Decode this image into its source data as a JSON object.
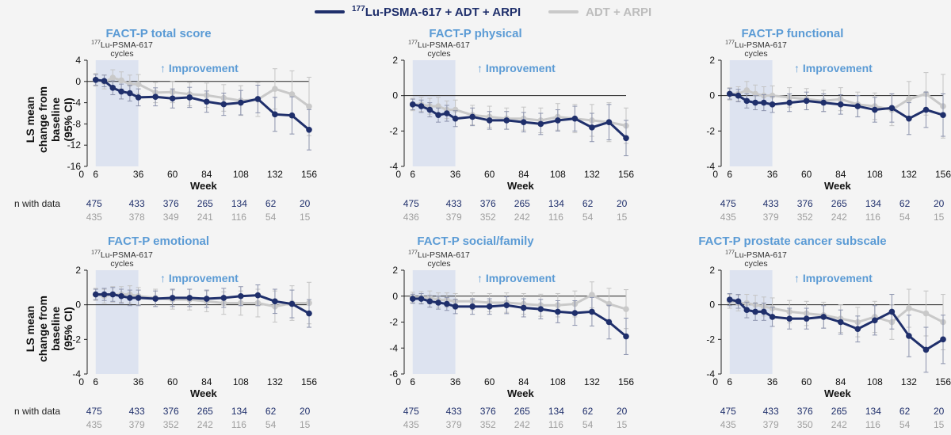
{
  "legend": {
    "items": [
      {
        "sup": "177",
        "text": "Lu-PSMA-617 + ADT + ARPI",
        "color": "#1f2f6b"
      },
      {
        "sup": "",
        "text": "ADT + ARPI",
        "color": "#c9c9c9"
      }
    ]
  },
  "common": {
    "cycles_sup": "177",
    "cycles_line1": "Lu-PSMA-617",
    "cycles_line2": "cycles",
    "improvement": "Improvement",
    "improvement_color": "#5b9bd5",
    "ylabel_line1": "LS mean",
    "ylabel_line2": "change from baseline",
    "ylabel_line3": "(95% CI)",
    "xlabel": "Week",
    "n_label": "n with data",
    "n_colors": [
      "#1f2f6b",
      "#9e9e9e"
    ],
    "title_color": "#5b9bd5"
  },
  "chart_data": [
    {
      "type": "line",
      "title": "FACT-P total score",
      "xlabel": "Week",
      "ylabel": "LS mean change from baseline (95% CI)",
      "xlim": [
        0,
        156
      ],
      "ylim": [
        -16,
        4
      ],
      "yticks": [
        4,
        0,
        -4,
        -8,
        -12,
        -16
      ],
      "xticks": [
        0,
        6,
        36,
        60,
        84,
        108,
        132,
        156
      ],
      "shaded_region": [
        6,
        36
      ],
      "x": [
        6,
        12,
        18,
        24,
        30,
        36,
        48,
        60,
        72,
        84,
        96,
        108,
        120,
        132,
        144,
        156
      ],
      "series": [
        {
          "name": "177Lu-PSMA-617 + ADT + ARPI",
          "values": [
            0.3,
            0.1,
            -1.2,
            -1.9,
            -2.2,
            -3.0,
            -2.9,
            -3.2,
            -3.0,
            -3.8,
            -4.3,
            -4.0,
            -3.3,
            -6.2,
            -6.4,
            -9.1
          ],
          "ci": [
            1.0,
            1.1,
            1.3,
            1.4,
            1.5,
            1.6,
            1.7,
            1.8,
            1.9,
            2.0,
            2.1,
            2.3,
            2.6,
            3.2,
            3.5,
            3.8
          ]
        },
        {
          "name": "ADT + ARPI",
          "values": [
            0.3,
            -0.1,
            0.7,
            0.2,
            -0.5,
            -0.5,
            -2.1,
            -2.0,
            -2.4,
            -2.6,
            -3.1,
            -3.6,
            -3.4,
            -1.4,
            -2.4,
            -4.7
          ],
          "ci": [
            1.2,
            1.3,
            1.5,
            1.6,
            1.7,
            1.8,
            1.9,
            2.0,
            2.2,
            2.3,
            2.5,
            2.8,
            3.2,
            3.8,
            4.4,
            5.5
          ]
        }
      ],
      "n_with_data": {
        "ticks": [
          6,
          36,
          60,
          84,
          108,
          132,
          156
        ],
        "series1": [
          "475",
          "433",
          "376",
          "265",
          "134",
          "62",
          "20"
        ],
        "series2": [
          "435",
          "378",
          "349",
          "241",
          "116",
          "54",
          "15"
        ]
      }
    },
    {
      "type": "line",
      "title": "FACT-P physical",
      "xlabel": "Week",
      "ylabel": "",
      "xlim": [
        0,
        156
      ],
      "ylim": [
        -4,
        2
      ],
      "yticks": [
        2,
        0,
        -2,
        -4
      ],
      "xticks": [
        0,
        6,
        36,
        60,
        84,
        108,
        132,
        156
      ],
      "shaded_region": [
        6,
        36
      ],
      "x": [
        6,
        12,
        18,
        24,
        30,
        36,
        48,
        60,
        72,
        84,
        96,
        108,
        120,
        132,
        144,
        156
      ],
      "series": [
        {
          "name": "177Lu-PSMA-617 + ADT + ARPI",
          "values": [
            -0.5,
            -0.6,
            -0.8,
            -1.1,
            -1.0,
            -1.3,
            -1.2,
            -1.4,
            -1.4,
            -1.5,
            -1.6,
            -1.4,
            -1.3,
            -1.8,
            -1.5,
            -2.4
          ],
          "ci": [
            0.3,
            0.35,
            0.4,
            0.4,
            0.45,
            0.45,
            0.5,
            0.5,
            0.5,
            0.55,
            0.6,
            0.6,
            0.7,
            0.8,
            1.0,
            1.0
          ]
        },
        {
          "name": "ADT + ARPI",
          "values": [
            -0.5,
            -0.5,
            -0.6,
            -0.6,
            -0.8,
            -0.8,
            -1.1,
            -1.2,
            -1.3,
            -1.3,
            -1.4,
            -1.2,
            -1.3,
            -1.4,
            -1.5,
            -1.7
          ],
          "ci": [
            0.35,
            0.4,
            0.45,
            0.5,
            0.5,
            0.55,
            0.55,
            0.6,
            0.6,
            0.65,
            0.7,
            0.75,
            0.8,
            0.9,
            1.1,
            1.0
          ]
        }
      ],
      "n_with_data": {
        "ticks": [
          6,
          36,
          60,
          84,
          108,
          132,
          156
        ],
        "series1": [
          "475",
          "433",
          "376",
          "265",
          "134",
          "62",
          "20"
        ],
        "series2": [
          "436",
          "379",
          "352",
          "242",
          "116",
          "54",
          "15"
        ]
      }
    },
    {
      "type": "line",
      "title": "FACT-P functional",
      "xlabel": "Week",
      "ylabel": "",
      "xlim": [
        0,
        156
      ],
      "ylim": [
        -4,
        2
      ],
      "yticks": [
        2,
        0,
        -2,
        -4
      ],
      "xticks": [
        0,
        6,
        36,
        60,
        84,
        108,
        132,
        156
      ],
      "shaded_region": [
        6,
        36
      ],
      "x": [
        6,
        12,
        18,
        24,
        30,
        36,
        48,
        60,
        72,
        84,
        96,
        108,
        120,
        132,
        144,
        156
      ],
      "series": [
        {
          "name": "177Lu-PSMA-617 + ADT + ARPI",
          "values": [
            0.1,
            0.0,
            -0.3,
            -0.4,
            -0.4,
            -0.5,
            -0.4,
            -0.3,
            -0.4,
            -0.5,
            -0.6,
            -0.8,
            -0.7,
            -1.3,
            -0.8,
            -1.1
          ],
          "ci": [
            0.3,
            0.35,
            0.4,
            0.4,
            0.45,
            0.45,
            0.5,
            0.5,
            0.5,
            0.55,
            0.6,
            0.7,
            0.8,
            0.9,
            1.0,
            1.2
          ]
        },
        {
          "name": "ADT + ARPI",
          "values": [
            0.1,
            0.1,
            0.3,
            0.1,
            0.0,
            0.0,
            -0.1,
            -0.2,
            -0.3,
            -0.2,
            -0.5,
            -0.6,
            -0.8,
            -0.2,
            0.1,
            -0.6
          ],
          "ci": [
            0.35,
            0.4,
            0.5,
            0.5,
            0.5,
            0.55,
            0.55,
            0.6,
            0.6,
            0.65,
            0.7,
            0.75,
            0.9,
            1.0,
            1.2,
            1.8
          ]
        }
      ],
      "n_with_data": {
        "ticks": [
          6,
          36,
          60,
          84,
          108,
          132,
          156
        ],
        "series1": [
          "475",
          "433",
          "376",
          "265",
          "134",
          "62",
          "20"
        ],
        "series2": [
          "435",
          "379",
          "352",
          "242",
          "116",
          "54",
          "15"
        ]
      }
    },
    {
      "type": "line",
      "title": "FACT-P emotional",
      "xlabel": "Week",
      "ylabel": "LS mean change from baseline (95% CI)",
      "xlim": [
        0,
        156
      ],
      "ylim": [
        -4,
        2
      ],
      "yticks": [
        2,
        0,
        -2,
        -4
      ],
      "xticks": [
        0,
        6,
        36,
        60,
        84,
        108,
        132,
        156
      ],
      "shaded_region": [
        6,
        36
      ],
      "x": [
        6,
        12,
        18,
        24,
        30,
        36,
        48,
        60,
        72,
        84,
        96,
        108,
        120,
        132,
        144,
        156
      ],
      "series": [
        {
          "name": "177Lu-PSMA-617 + ADT + ARPI",
          "values": [
            0.6,
            0.6,
            0.6,
            0.5,
            0.4,
            0.4,
            0.35,
            0.4,
            0.4,
            0.35,
            0.4,
            0.5,
            0.55,
            0.2,
            0.05,
            -0.5
          ],
          "ci": [
            0.3,
            0.35,
            0.4,
            0.4,
            0.45,
            0.45,
            0.45,
            0.5,
            0.5,
            0.5,
            0.55,
            0.55,
            0.6,
            0.7,
            0.8,
            0.8
          ]
        },
        {
          "name": "ADT + ARPI",
          "values": [
            0.6,
            0.5,
            0.6,
            0.6,
            0.6,
            0.5,
            0.4,
            0.3,
            0.3,
            0.2,
            0.1,
            0.1,
            0.1,
            -0.1,
            0.1,
            0.1
          ],
          "ci": [
            0.35,
            0.4,
            0.45,
            0.45,
            0.5,
            0.5,
            0.5,
            0.55,
            0.6,
            0.6,
            0.65,
            0.7,
            0.8,
            0.9,
            1.0,
            1.2
          ]
        }
      ],
      "n_with_data": {
        "ticks": [
          6,
          36,
          60,
          84,
          108,
          132,
          156
        ],
        "series1": [
          "475",
          "433",
          "376",
          "265",
          "134",
          "62",
          "20"
        ],
        "series2": [
          "435",
          "379",
          "352",
          "242",
          "116",
          "54",
          "15"
        ]
      }
    },
    {
      "type": "line",
      "title": "FACT-P social/family",
      "xlabel": "Week",
      "ylabel": "",
      "xlim": [
        0,
        156
      ],
      "ylim": [
        -6,
        2
      ],
      "yticks": [
        2,
        0,
        -2,
        -4,
        -6
      ],
      "xticks": [
        0,
        6,
        36,
        60,
        84,
        108,
        132,
        156
      ],
      "shaded_region": [
        6,
        36
      ],
      "x": [
        6,
        12,
        18,
        24,
        30,
        36,
        48,
        60,
        72,
        84,
        96,
        108,
        120,
        132,
        144,
        156
      ],
      "series": [
        {
          "name": "177Lu-PSMA-617 + ADT + ARPI",
          "values": [
            -0.2,
            -0.2,
            -0.4,
            -0.5,
            -0.6,
            -0.8,
            -0.8,
            -0.8,
            -0.7,
            -0.9,
            -1.0,
            -1.2,
            -1.3,
            -1.2,
            -2.0,
            -3.1
          ],
          "ci": [
            0.35,
            0.4,
            0.45,
            0.5,
            0.5,
            0.55,
            0.6,
            0.6,
            0.65,
            0.7,
            0.75,
            0.85,
            0.95,
            1.1,
            1.3,
            1.4
          ]
        },
        {
          "name": "ADT + ARPI",
          "values": [
            -0.1,
            -0.1,
            -0.1,
            -0.3,
            -0.3,
            -0.4,
            -0.4,
            -0.5,
            -0.5,
            -0.6,
            -0.7,
            -0.7,
            -0.6,
            0.1,
            -0.6,
            -1.0
          ],
          "ci": [
            0.4,
            0.45,
            0.5,
            0.55,
            0.55,
            0.6,
            0.65,
            0.7,
            0.75,
            0.8,
            0.85,
            0.9,
            1.0,
            1.0,
            1.2,
            1.5
          ]
        }
      ],
      "n_with_data": {
        "ticks": [
          6,
          36,
          60,
          84,
          108,
          132,
          156
        ],
        "series1": [
          "475",
          "433",
          "376",
          "265",
          "134",
          "62",
          "20"
        ],
        "series2": [
          "435",
          "379",
          "352",
          "242",
          "116",
          "54",
          "15"
        ]
      }
    },
    {
      "type": "line",
      "title": "FACT-P prostate cancer subscale",
      "xlabel": "Week",
      "ylabel": "",
      "xlim": [
        0,
        156
      ],
      "ylim": [
        -4,
        2
      ],
      "yticks": [
        2,
        0,
        -2,
        -4
      ],
      "xticks": [
        0,
        6,
        36,
        60,
        84,
        108,
        132,
        156
      ],
      "shaded_region": [
        6,
        36
      ],
      "x": [
        6,
        12,
        18,
        24,
        30,
        36,
        48,
        60,
        72,
        84,
        96,
        108,
        120,
        132,
        144,
        156
      ],
      "series": [
        {
          "name": "177Lu-PSMA-617 + ADT + ARPI",
          "values": [
            0.3,
            0.2,
            -0.3,
            -0.4,
            -0.4,
            -0.7,
            -0.8,
            -0.8,
            -0.7,
            -1.0,
            -1.4,
            -0.9,
            -0.4,
            -1.8,
            -2.6,
            -2.0
          ],
          "ci": [
            0.35,
            0.4,
            0.45,
            0.5,
            0.5,
            0.55,
            0.6,
            0.6,
            0.65,
            0.7,
            0.75,
            0.85,
            1.0,
            1.2,
            1.3,
            1.4
          ]
        },
        {
          "name": "ADT + ARPI",
          "values": [
            0.2,
            0.1,
            0.1,
            0.0,
            -0.1,
            -0.2,
            -0.4,
            -0.5,
            -0.6,
            -0.8,
            -1.0,
            -0.7,
            -1.0,
            -0.2,
            -0.5,
            -1.0
          ],
          "ci": [
            0.4,
            0.45,
            0.5,
            0.55,
            0.55,
            0.6,
            0.65,
            0.7,
            0.75,
            0.8,
            0.85,
            0.9,
            1.0,
            1.1,
            1.3,
            1.6
          ]
        }
      ],
      "n_with_data": {
        "ticks": [
          6,
          36,
          60,
          84,
          108,
          132,
          156
        ],
        "series1": [
          "475",
          "433",
          "376",
          "265",
          "134",
          "62",
          "20"
        ],
        "series2": [
          "435",
          "379",
          "350",
          "242",
          "116",
          "54",
          "15"
        ]
      }
    }
  ]
}
